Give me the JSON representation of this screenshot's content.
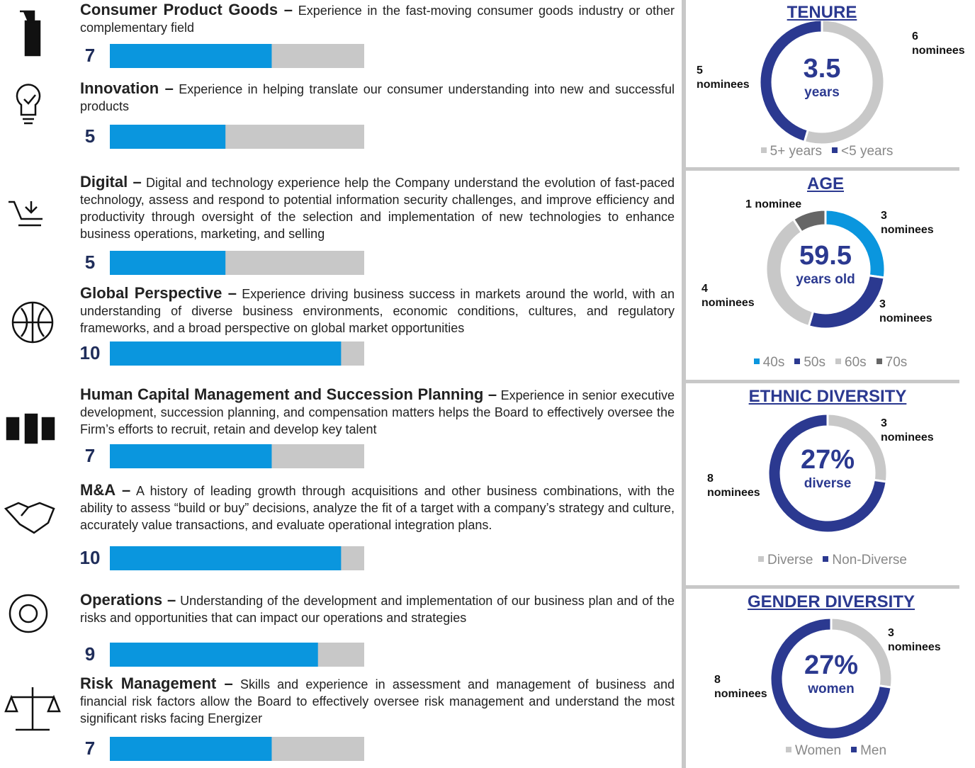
{
  "chart_data": [
    {
      "type": "bar",
      "color": "#0a96de",
      "track_color": "#c8c8c8",
      "xlim": [
        0,
        11
      ],
      "categories": [
        "Consumer Product Goods –",
        "Innovation –",
        "Digital –",
        "Global Perspective –",
        "Human Capital Management and Succession Planning –",
        "M&A –",
        "Operations –",
        "Risk Management –"
      ],
      "descriptions": [
        "Experience in the fast-moving consumer goods industry or other complementary field",
        "Experience in helping translate our consumer understanding into new and successful products",
        "Digital and technology experience help the Company understand the evolution of fast-paced technology, assess and respond to potential information security challenges, and improve efficiency and productivity through oversight of the selection and implementation of new technologies to enhance business operations, marketing, and selling",
        "Experience driving business success in markets around the world, with an understanding of diverse business environments, economic conditions, cultures, and regulatory frameworks, and a broad perspective on global market opportunities",
        "Experience in senior executive development, succession planning, and compensation matters helps the Board to effectively oversee the Firm’s efforts to recruit, retain and develop key talent",
        "A history of leading growth through acquisitions and other business combinations, with the ability to assess “build or buy” decisions, analyze the fit of a target with a company’s strategy and culture, accurately value transactions, and evaluate operational integration plans.",
        "Understanding of the development and implementation of our business plan and of the risks and opportunities that can impact our operations and strategies",
        "Skills and experience in assessment and management of business and financial risk factors allow the Board to effectively oversee risk management and understand the most significant risks facing Energizer"
      ],
      "values": [
        7,
        5,
        5,
        10,
        7,
        10,
        9,
        7
      ]
    },
    {
      "type": "donut",
      "title": "TENURE",
      "center_value": 3.5,
      "center_label": "years",
      "categories": [
        "5+ years",
        "<5 years"
      ],
      "values": [
        6,
        5
      ],
      "colors": [
        "#c8c8c8",
        "#2b3990"
      ],
      "value_labels": [
        "6\nnominees",
        "5\nnominees"
      ]
    },
    {
      "type": "donut",
      "title": "AGE",
      "center_value": 59.5,
      "center_label": "years old",
      "categories": [
        "40s",
        "50s",
        "60s",
        "70s"
      ],
      "values": [
        3,
        3,
        4,
        1
      ],
      "colors": [
        "#0a96de",
        "#2b3990",
        "#c8c8c8",
        "#666666"
      ],
      "value_labels": [
        "3\nnominees",
        "3\nnominees",
        "4\nnominees",
        "1 nominee"
      ]
    },
    {
      "type": "donut",
      "title": "ETHNIC DIVERSITY",
      "center_value": "27%",
      "center_label": "diverse",
      "categories": [
        "Diverse",
        "Non-Diverse"
      ],
      "values": [
        3,
        8
      ],
      "colors": [
        "#c8c8c8",
        "#2b3990"
      ],
      "value_labels": [
        "3\nnominees",
        "8\nnominees"
      ]
    },
    {
      "type": "donut",
      "title": "GENDER DIVERSITY",
      "center_value": "27%",
      "center_label": "women",
      "categories": [
        "Women",
        "Men"
      ],
      "values": [
        3,
        8
      ],
      "colors": [
        "#c8c8c8",
        "#2b3990"
      ],
      "value_labels": [
        "3\nnominees",
        "8\nnominees"
      ]
    }
  ]
}
